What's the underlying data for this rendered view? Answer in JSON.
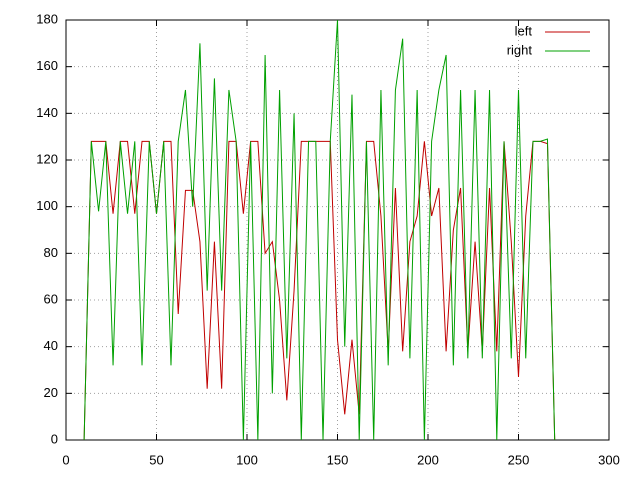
{
  "chart_data": {
    "type": "line",
    "x": [
      10,
      14,
      18,
      22,
      26,
      30,
      34,
      38,
      42,
      46,
      50,
      54,
      58,
      62,
      66,
      70,
      74,
      78,
      82,
      86,
      90,
      94,
      98,
      102,
      106,
      110,
      114,
      118,
      122,
      126,
      130,
      134,
      138,
      142,
      146,
      150,
      154,
      158,
      162,
      166,
      170,
      174,
      178,
      182,
      186,
      190,
      194,
      198,
      202,
      206,
      210,
      214,
      218,
      222,
      226,
      230,
      234,
      238,
      242,
      246,
      250,
      254,
      258,
      262,
      266,
      270
    ],
    "series": [
      {
        "name": "left",
        "color": "#c00000",
        "values": [
          0,
          128,
          128,
          128,
          97,
          128,
          128,
          97,
          128,
          128,
          97,
          128,
          128,
          54,
          107,
          107,
          85,
          22,
          85,
          22,
          128,
          128,
          97,
          128,
          128,
          80,
          85,
          60,
          17,
          64,
          128,
          128,
          128,
          128,
          128,
          43,
          11,
          43,
          11,
          128,
          128,
          96,
          38,
          108,
          38,
          85,
          96,
          128,
          96,
          108,
          38,
          90,
          108,
          38,
          85,
          38,
          108,
          38,
          128,
          85,
          27,
          96,
          128,
          128,
          127,
          0
        ]
      },
      {
        "name": "right",
        "color": "#00a000",
        "values": [
          0,
          128,
          98,
          128,
          32,
          128,
          97,
          128,
          32,
          128,
          97,
          128,
          32,
          128,
          150,
          100,
          170,
          64,
          155,
          64,
          150,
          128,
          0,
          128,
          0,
          165,
          20,
          150,
          35,
          140,
          0,
          128,
          128,
          0,
          128,
          180,
          40,
          148,
          0,
          128,
          0,
          150,
          32,
          150,
          172,
          35,
          150,
          0,
          128,
          150,
          165,
          32,
          150,
          35,
          150,
          35,
          150,
          0,
          128,
          35,
          150,
          35,
          128,
          128,
          129,
          0
        ]
      }
    ],
    "xlim": [
      0,
      300
    ],
    "ylim": [
      0,
      180
    ],
    "xticks": [
      0,
      50,
      100,
      150,
      200,
      250,
      300
    ],
    "yticks": [
      0,
      20,
      40,
      60,
      80,
      100,
      120,
      140,
      160,
      180
    ],
    "grid": true,
    "legend": "top-right"
  }
}
